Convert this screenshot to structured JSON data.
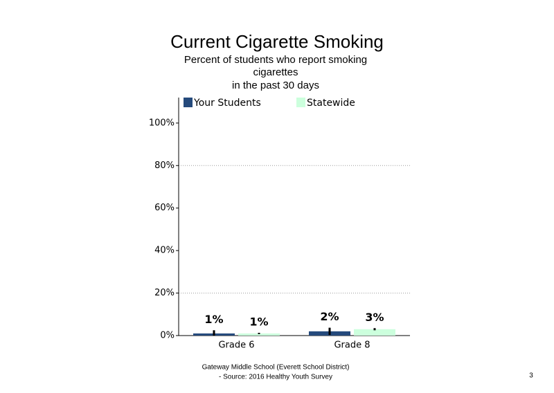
{
  "chart_data": {
    "type": "bar",
    "title": "Current Cigarette Smoking",
    "subtitle": [
      "Percent of students who report smoking",
      "cigarettes",
      "in the past 30 days"
    ],
    "categories": [
      "Grade 6",
      "Grade 8"
    ],
    "series": [
      {
        "name": "Your Students",
        "color": "#254a7c",
        "values": [
          1,
          2
        ],
        "value_labels": [
          "1%",
          "2%"
        ],
        "errors": [
          1.5,
          1.7
        ]
      },
      {
        "name": "Statewide",
        "color": "#ccffdd",
        "values": [
          1,
          3
        ],
        "value_labels": [
          "1%",
          "3%"
        ],
        "errors": [
          0.3,
          0.5
        ]
      }
    ],
    "ylim": [
      0,
      112
    ],
    "yticks": [
      {
        "value": 0,
        "label": "0%"
      },
      {
        "value": 20,
        "label": "20%"
      },
      {
        "value": 40,
        "label": "40%"
      },
      {
        "value": 60,
        "label": "60%"
      },
      {
        "value": 80,
        "label": "80%"
      },
      {
        "value": 100,
        "label": "100%"
      }
    ],
    "grid_values": [
      20,
      80
    ],
    "legend": "top",
    "footer": [
      "Gateway Middle  School  (Everett School District)",
      "- Source:  2016 Healthy  Youth Survey"
    ],
    "page_number": "3"
  }
}
